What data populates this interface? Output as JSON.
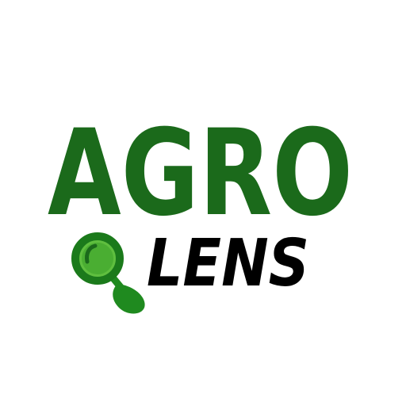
{
  "logo": {
    "line1": "AGRO",
    "line2": "LENS"
  }
}
